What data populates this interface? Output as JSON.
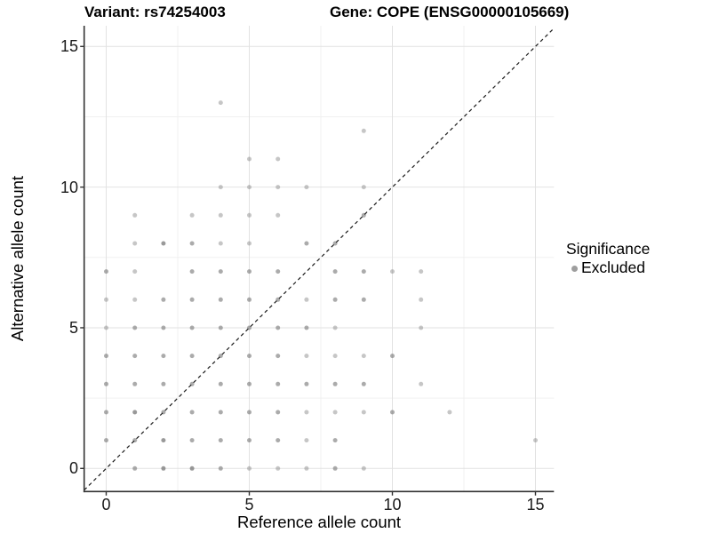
{
  "titles": {
    "variant": "Variant: rs74254003",
    "gene": "Gene: COPE (ENSG00000105669)"
  },
  "legend": {
    "title": "Significance",
    "items": [
      {
        "label": "Excluded",
        "color": "#9e9e9e"
      }
    ]
  },
  "colors": {
    "point_base": "#808080",
    "grid_major": "#e2e2e2",
    "grid_minor": "#f0f0f0",
    "axis_line": "#333333",
    "tick_mark": "#333333",
    "identity_line": "#1a1a1a",
    "background": "#ffffff"
  },
  "chart_data": {
    "type": "scatter",
    "title": "Variant: rs74254003 | Gene: COPE (ENSG00000105669)",
    "xlabel": "Reference allele count",
    "ylabel": "Alternative allele count",
    "xlim": [
      -0.8,
      15.7
    ],
    "ylim": [
      -0.8,
      15.7
    ],
    "x_ticks": [
      0,
      5,
      10,
      15
    ],
    "y_ticks": [
      0,
      5,
      10,
      15
    ],
    "x_minor": [
      2.5,
      7.5,
      12.5
    ],
    "y_minor": [
      2.5,
      7.5,
      12.5
    ],
    "grid": true,
    "legend_position": "right",
    "reference_line": {
      "type": "abline",
      "slope": 1,
      "intercept": 0,
      "style": "dashed"
    },
    "series_name": "Excluded",
    "opacity_levels": {
      "L": 0.45,
      "M": 0.66,
      "D": 0.8
    },
    "points": [
      [
        4,
        13,
        "L"
      ],
      [
        9,
        12,
        "L"
      ],
      [
        5,
        11,
        "L"
      ],
      [
        6,
        11,
        "L"
      ],
      [
        4,
        10,
        "L"
      ],
      [
        5,
        10,
        "L"
      ],
      [
        6,
        10,
        "L"
      ],
      [
        7,
        10,
        "L"
      ],
      [
        9,
        10,
        "L"
      ],
      [
        1,
        9,
        "L"
      ],
      [
        3,
        9,
        "L"
      ],
      [
        4,
        9,
        "L"
      ],
      [
        5,
        9,
        "L"
      ],
      [
        6,
        9,
        "L"
      ],
      [
        9,
        9,
        "M"
      ],
      [
        1,
        8,
        "L"
      ],
      [
        2,
        8,
        "D"
      ],
      [
        3,
        8,
        "M"
      ],
      [
        4,
        8,
        "L"
      ],
      [
        5,
        8,
        "L"
      ],
      [
        7,
        8,
        "M"
      ],
      [
        8,
        8,
        "M"
      ],
      [
        0,
        7,
        "M"
      ],
      [
        1,
        7,
        "L"
      ],
      [
        3,
        7,
        "M"
      ],
      [
        4,
        7,
        "M"
      ],
      [
        5,
        7,
        "M"
      ],
      [
        6,
        7,
        "M"
      ],
      [
        8,
        7,
        "M"
      ],
      [
        9,
        7,
        "M"
      ],
      [
        10,
        7,
        "L"
      ],
      [
        11,
        7,
        "L"
      ],
      [
        0,
        6,
        "L"
      ],
      [
        1,
        6,
        "L"
      ],
      [
        2,
        6,
        "M"
      ],
      [
        3,
        6,
        "M"
      ],
      [
        4,
        6,
        "M"
      ],
      [
        5,
        6,
        "M"
      ],
      [
        6,
        6,
        "M"
      ],
      [
        7,
        6,
        "L"
      ],
      [
        8,
        6,
        "M"
      ],
      [
        9,
        6,
        "M"
      ],
      [
        11,
        6,
        "L"
      ],
      [
        0,
        5,
        "L"
      ],
      [
        1,
        5,
        "M"
      ],
      [
        2,
        5,
        "M"
      ],
      [
        3,
        5,
        "M"
      ],
      [
        4,
        5,
        "M"
      ],
      [
        5,
        5,
        "M"
      ],
      [
        6,
        5,
        "M"
      ],
      [
        7,
        5,
        "M"
      ],
      [
        8,
        5,
        "L"
      ],
      [
        11,
        5,
        "L"
      ],
      [
        0,
        4,
        "M"
      ],
      [
        1,
        4,
        "M"
      ],
      [
        2,
        4,
        "M"
      ],
      [
        3,
        4,
        "M"
      ],
      [
        4,
        4,
        "M"
      ],
      [
        5,
        4,
        "M"
      ],
      [
        6,
        4,
        "M"
      ],
      [
        7,
        4,
        "L"
      ],
      [
        8,
        4,
        "L"
      ],
      [
        9,
        4,
        "L"
      ],
      [
        10,
        4,
        "M"
      ],
      [
        0,
        3,
        "M"
      ],
      [
        1,
        3,
        "M"
      ],
      [
        2,
        3,
        "M"
      ],
      [
        3,
        3,
        "M"
      ],
      [
        4,
        3,
        "M"
      ],
      [
        5,
        3,
        "M"
      ],
      [
        6,
        3,
        "M"
      ],
      [
        7,
        3,
        "M"
      ],
      [
        8,
        3,
        "M"
      ],
      [
        9,
        3,
        "M"
      ],
      [
        11,
        3,
        "L"
      ],
      [
        0,
        2,
        "M"
      ],
      [
        1,
        2,
        "D"
      ],
      [
        2,
        2,
        "M"
      ],
      [
        3,
        2,
        "M"
      ],
      [
        4,
        2,
        "M"
      ],
      [
        5,
        2,
        "M"
      ],
      [
        6,
        2,
        "M"
      ],
      [
        7,
        2,
        "L"
      ],
      [
        8,
        2,
        "L"
      ],
      [
        9,
        2,
        "L"
      ],
      [
        10,
        2,
        "M"
      ],
      [
        12,
        2,
        "L"
      ],
      [
        0,
        1,
        "M"
      ],
      [
        1,
        1,
        "M"
      ],
      [
        2,
        1,
        "D"
      ],
      [
        3,
        1,
        "M"
      ],
      [
        4,
        1,
        "M"
      ],
      [
        5,
        1,
        "M"
      ],
      [
        6,
        1,
        "M"
      ],
      [
        7,
        1,
        "L"
      ],
      [
        8,
        1,
        "M"
      ],
      [
        15,
        1,
        "L"
      ],
      [
        1,
        0,
        "M"
      ],
      [
        2,
        0,
        "D"
      ],
      [
        3,
        0,
        "D"
      ],
      [
        4,
        0,
        "M"
      ],
      [
        5,
        0,
        "L"
      ],
      [
        6,
        0,
        "L"
      ],
      [
        7,
        0,
        "L"
      ],
      [
        8,
        0,
        "M"
      ],
      [
        9,
        0,
        "L"
      ]
    ]
  }
}
